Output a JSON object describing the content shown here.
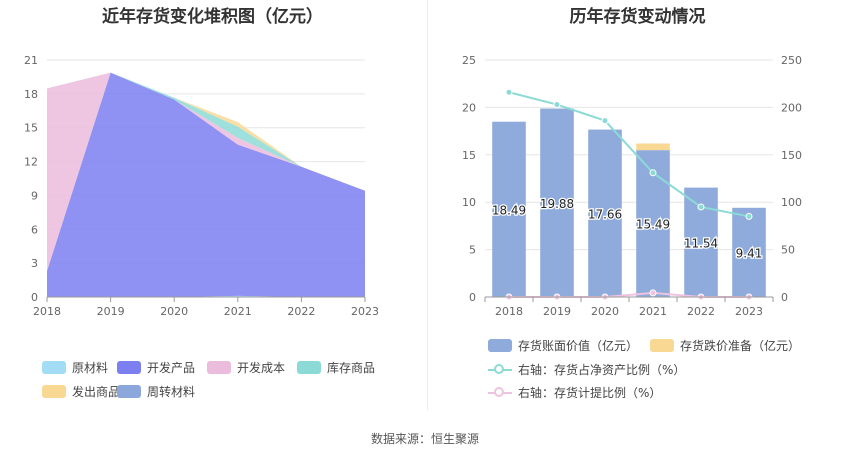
{
  "source_label": "数据来源：恒生聚源",
  "chart_data": [
    {
      "type": "area",
      "stacked": true,
      "title": "近年存货变化堆积图（亿元）",
      "categories": [
        "2018",
        "2019",
        "2020",
        "2021",
        "2022",
        "2023"
      ],
      "ylim": [
        0,
        21
      ],
      "yticks": [
        "0",
        "3",
        "6",
        "9",
        "12",
        "15",
        "18",
        "21"
      ],
      "series": [
        {
          "name": "原材料",
          "color": "#a3dcf5",
          "values": [
            0,
            0,
            0,
            0.1,
            0,
            0
          ]
        },
        {
          "name": "开发产品",
          "color": "#7b7ff0",
          "values": [
            2.3,
            19.88,
            17.5,
            13.4,
            11.54,
            9.41
          ]
        },
        {
          "name": "开发成本",
          "color": "#ecbcdc",
          "values": [
            16.19,
            0,
            0,
            0.6,
            0,
            0
          ]
        },
        {
          "name": "库存商品",
          "color": "#8cdad6",
          "values": [
            0,
            0,
            0.16,
            1.0,
            0,
            0
          ]
        },
        {
          "name": "发出商品",
          "color": "#f9d894",
          "values": [
            0,
            0,
            0,
            0.39,
            0,
            0
          ]
        },
        {
          "name": "周转材料",
          "color": "#8ba7dc",
          "values": [
            0,
            0,
            0,
            0,
            0,
            0
          ]
        }
      ]
    },
    {
      "type": "bar+line",
      "title": "历年存货变动情况",
      "categories": [
        "2018",
        "2019",
        "2020",
        "2021",
        "2022",
        "2023"
      ],
      "ylim_left": [
        0,
        25
      ],
      "yticks_left": [
        "0",
        "5",
        "10",
        "15",
        "20",
        "25"
      ],
      "ylim_right": [
        0,
        250
      ],
      "yticks_right": [
        "0",
        "50",
        "100",
        "150",
        "200",
        "250"
      ],
      "bars": [
        {
          "name": "存货账面价值（亿元）",
          "color": "#8fabdc",
          "values": [
            18.49,
            19.88,
            17.66,
            15.49,
            11.54,
            9.41
          ],
          "labels": [
            "18.49",
            "19.88",
            "17.66",
            "15.49",
            "11.54",
            "9.41"
          ]
        },
        {
          "name": "存货跌价准备（亿元）",
          "color": "#f9d894",
          "values": [
            0,
            0,
            0,
            0.7,
            0,
            0
          ]
        }
      ],
      "lines": [
        {
          "name": "右轴：存货占净资产比例（%）",
          "color": "#8cdad6",
          "axis": "right",
          "values": [
            216,
            203,
            186,
            131,
            95,
            85
          ]
        },
        {
          "name": "右轴：存货计提比例（%）",
          "color": "#eec3df",
          "axis": "right",
          "values": [
            0,
            0,
            0,
            4.3,
            0,
            0
          ]
        }
      ]
    }
  ]
}
